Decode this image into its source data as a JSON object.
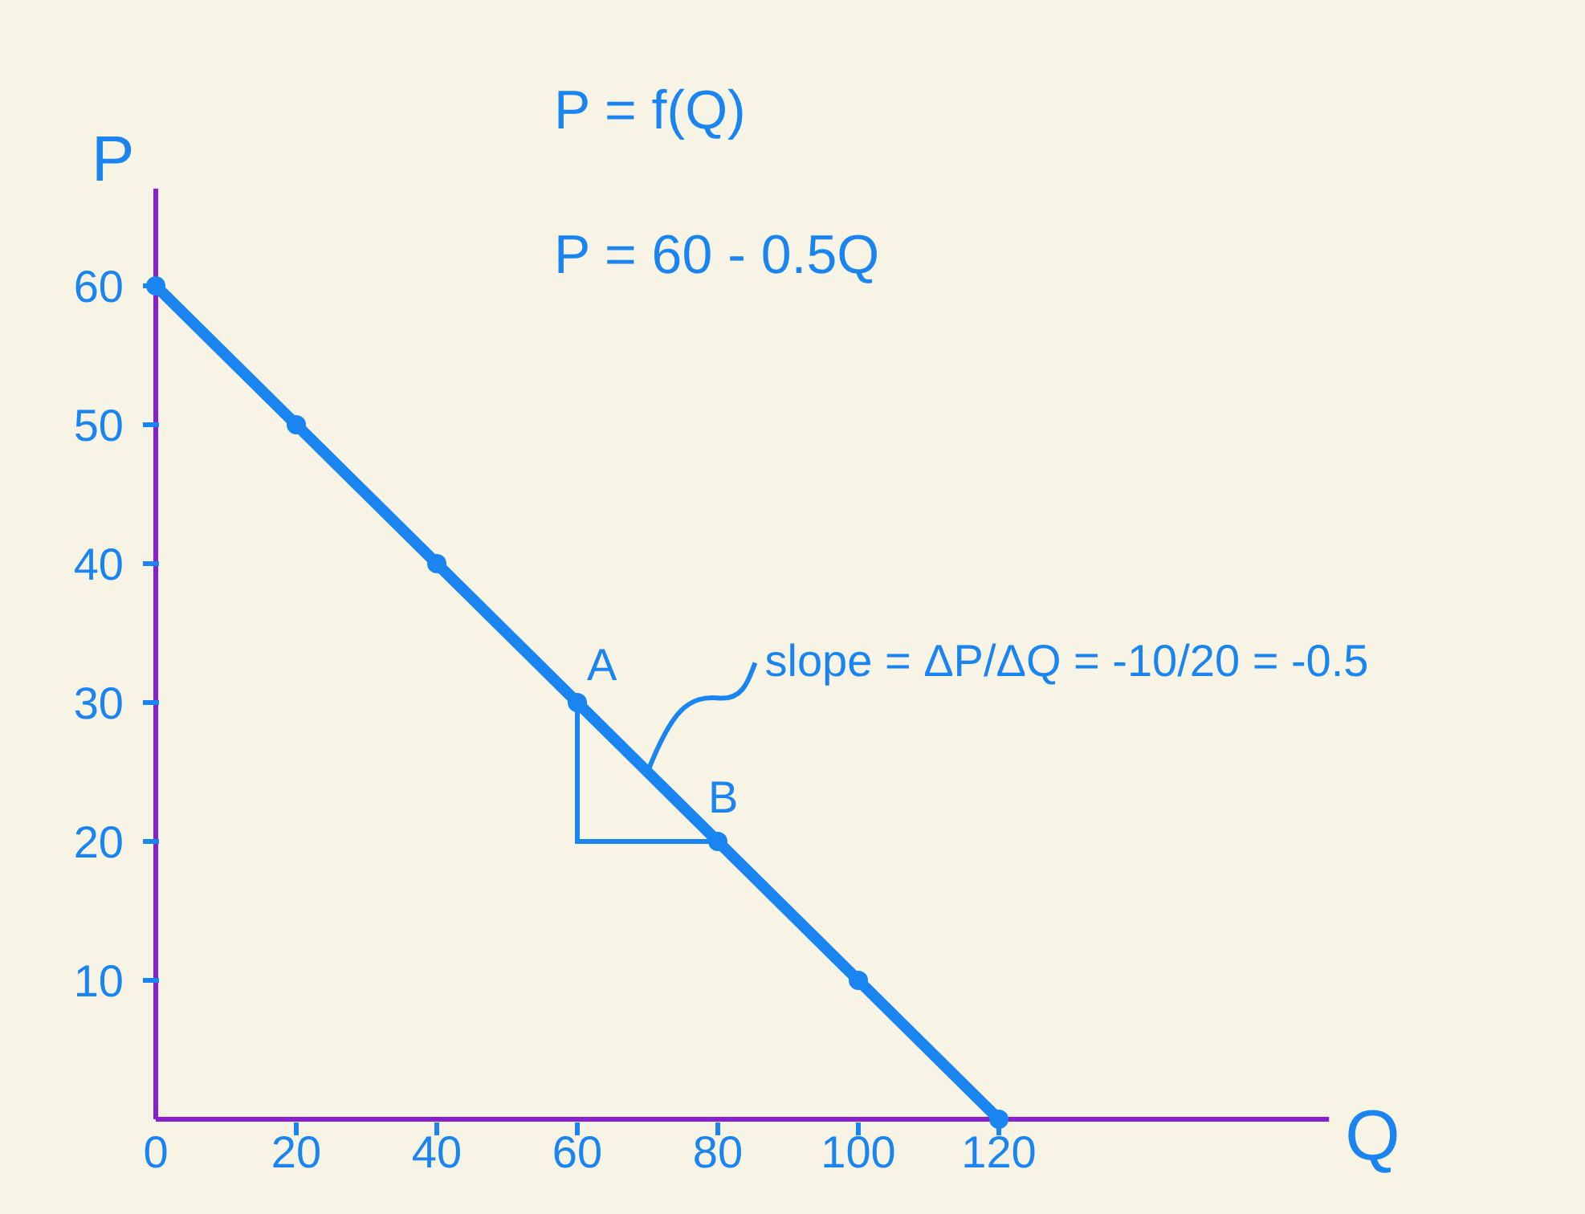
{
  "chart_data": {
    "type": "line",
    "title": "P = f(Q)",
    "subtitle": "P = 60 - 0.5Q",
    "xlabel": "Q",
    "ylabel": "P",
    "x": [
      0,
      20,
      40,
      60,
      80,
      100,
      120
    ],
    "series": [
      {
        "color": "#1a84f0",
        "values": [
          60,
          50,
          40,
          30,
          20,
          10,
          0
        ]
      }
    ],
    "xlim": [
      0,
      167
    ],
    "ylim": [
      0,
      67
    ],
    "xticks": [
      0,
      20,
      40,
      60,
      80,
      100,
      120
    ],
    "yticks": [
      10,
      20,
      30,
      40,
      50,
      60
    ],
    "marker": "circle",
    "line_style": "solid",
    "grid": false,
    "annotations": [
      {
        "text": "A",
        "x": 60,
        "y": 30
      },
      {
        "text": "B",
        "x": 80,
        "y": 20
      },
      {
        "text": "slope = ΔP/ΔQ = -10/20 = -0.5",
        "x": 70,
        "y": 25
      }
    ]
  }
}
